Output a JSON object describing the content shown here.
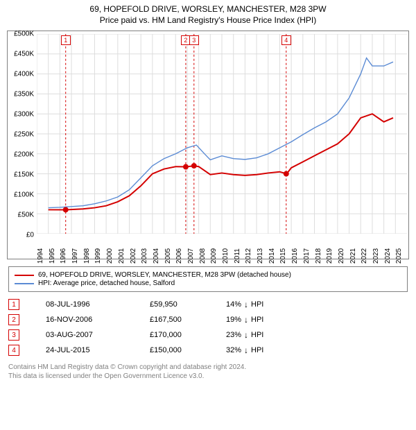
{
  "title1": "69, HOPEFOLD DRIVE, WORSLEY, MANCHESTER, M28 3PW",
  "title2": "Price paid vs. HM Land Registry's House Price Index (HPI)",
  "chart": {
    "x_start": 1994,
    "x_end": 2026,
    "x_ticks": [
      1994,
      1995,
      1996,
      1997,
      1998,
      1999,
      2000,
      2001,
      2002,
      2003,
      2004,
      2005,
      2006,
      2007,
      2008,
      2009,
      2010,
      2011,
      2012,
      2013,
      2014,
      2015,
      2016,
      2017,
      2018,
      2019,
      2020,
      2021,
      2022,
      2023,
      2024,
      2025
    ],
    "y_min": 0,
    "y_max": 500000,
    "y_ticks": [
      0,
      50000,
      100000,
      150000,
      200000,
      250000,
      300000,
      350000,
      400000,
      450000,
      500000
    ],
    "y_tick_labels": [
      "£0",
      "£50K",
      "£100K",
      "£150K",
      "£200K",
      "£250K",
      "£300K",
      "£350K",
      "£400K",
      "£450K",
      "£500K"
    ],
    "grid_color": "#dddddd",
    "bg_color": "#ffffff",
    "series": [
      {
        "name": "property",
        "label": "69, HOPEFOLD DRIVE, WORSLEY, MANCHESTER, M28 3PW (detached house)",
        "color": "#d40000",
        "width": 2,
        "points": [
          [
            1995.0,
            60000
          ],
          [
            1996.5,
            59950
          ],
          [
            1998.0,
            62000
          ],
          [
            1999.0,
            65000
          ],
          [
            2000.0,
            70000
          ],
          [
            2001.0,
            80000
          ],
          [
            2002.0,
            95000
          ],
          [
            2003.0,
            120000
          ],
          [
            2004.0,
            150000
          ],
          [
            2005.0,
            162000
          ],
          [
            2006.0,
            168000
          ],
          [
            2006.9,
            167500
          ],
          [
            2007.6,
            170000
          ],
          [
            2008.0,
            168000
          ],
          [
            2009.0,
            148000
          ],
          [
            2010.0,
            152000
          ],
          [
            2011.0,
            148000
          ],
          [
            2012.0,
            146000
          ],
          [
            2013.0,
            148000
          ],
          [
            2014.0,
            152000
          ],
          [
            2015.0,
            155000
          ],
          [
            2015.6,
            150000
          ],
          [
            2016.0,
            165000
          ],
          [
            2017.0,
            180000
          ],
          [
            2018.0,
            195000
          ],
          [
            2019.0,
            210000
          ],
          [
            2020.0,
            225000
          ],
          [
            2021.0,
            250000
          ],
          [
            2022.0,
            290000
          ],
          [
            2023.0,
            300000
          ],
          [
            2024.0,
            280000
          ],
          [
            2024.8,
            290000
          ]
        ]
      },
      {
        "name": "hpi",
        "label": "HPI: Average price, detached house, Salford",
        "color": "#5b8bd4",
        "width": 1.4,
        "points": [
          [
            1995.0,
            65000
          ],
          [
            1996.0,
            66000
          ],
          [
            1997.0,
            68000
          ],
          [
            1998.0,
            70000
          ],
          [
            1999.0,
            75000
          ],
          [
            2000.0,
            82000
          ],
          [
            2001.0,
            92000
          ],
          [
            2002.0,
            110000
          ],
          [
            2003.0,
            140000
          ],
          [
            2004.0,
            170000
          ],
          [
            2005.0,
            188000
          ],
          [
            2006.0,
            200000
          ],
          [
            2007.0,
            215000
          ],
          [
            2007.8,
            222000
          ],
          [
            2008.5,
            200000
          ],
          [
            2009.0,
            185000
          ],
          [
            2010.0,
            195000
          ],
          [
            2011.0,
            188000
          ],
          [
            2012.0,
            186000
          ],
          [
            2013.0,
            190000
          ],
          [
            2014.0,
            200000
          ],
          [
            2015.0,
            215000
          ],
          [
            2016.0,
            230000
          ],
          [
            2017.0,
            248000
          ],
          [
            2018.0,
            265000
          ],
          [
            2019.0,
            280000
          ],
          [
            2020.0,
            300000
          ],
          [
            2021.0,
            340000
          ],
          [
            2022.0,
            400000
          ],
          [
            2022.5,
            440000
          ],
          [
            2023.0,
            420000
          ],
          [
            2024.0,
            420000
          ],
          [
            2024.8,
            430000
          ]
        ]
      }
    ],
    "sale_markers": [
      {
        "n": "1",
        "x": 1996.5,
        "y": 59950
      },
      {
        "n": "2",
        "x": 2006.88,
        "y": 167500
      },
      {
        "n": "3",
        "x": 2007.59,
        "y": 170000
      },
      {
        "n": "4",
        "x": 2015.56,
        "y": 150000
      }
    ],
    "marker_box_color": "#d40000",
    "marker_dot_color": "#d40000",
    "marker_vline_color": "#d40000"
  },
  "legend": {
    "items": [
      {
        "color": "#d40000",
        "label": "69, HOPEFOLD DRIVE, WORSLEY, MANCHESTER, M28 3PW (detached house)"
      },
      {
        "color": "#5b8bd4",
        "label": "HPI: Average price, detached house, Salford"
      }
    ]
  },
  "sales": [
    {
      "n": "1",
      "date": "08-JUL-1996",
      "price": "£59,950",
      "diff": "14%",
      "dir": "↓",
      "suffix": "HPI"
    },
    {
      "n": "2",
      "date": "16-NOV-2006",
      "price": "£167,500",
      "diff": "19%",
      "dir": "↓",
      "suffix": "HPI"
    },
    {
      "n": "3",
      "date": "03-AUG-2007",
      "price": "£170,000",
      "diff": "23%",
      "dir": "↓",
      "suffix": "HPI"
    },
    {
      "n": "4",
      "date": "24-JUL-2015",
      "price": "£150,000",
      "diff": "32%",
      "dir": "↓",
      "suffix": "HPI"
    }
  ],
  "attribution": {
    "line1": "Contains HM Land Registry data © Crown copyright and database right 2024.",
    "line2": "This data is licensed under the Open Government Licence v3.0."
  }
}
